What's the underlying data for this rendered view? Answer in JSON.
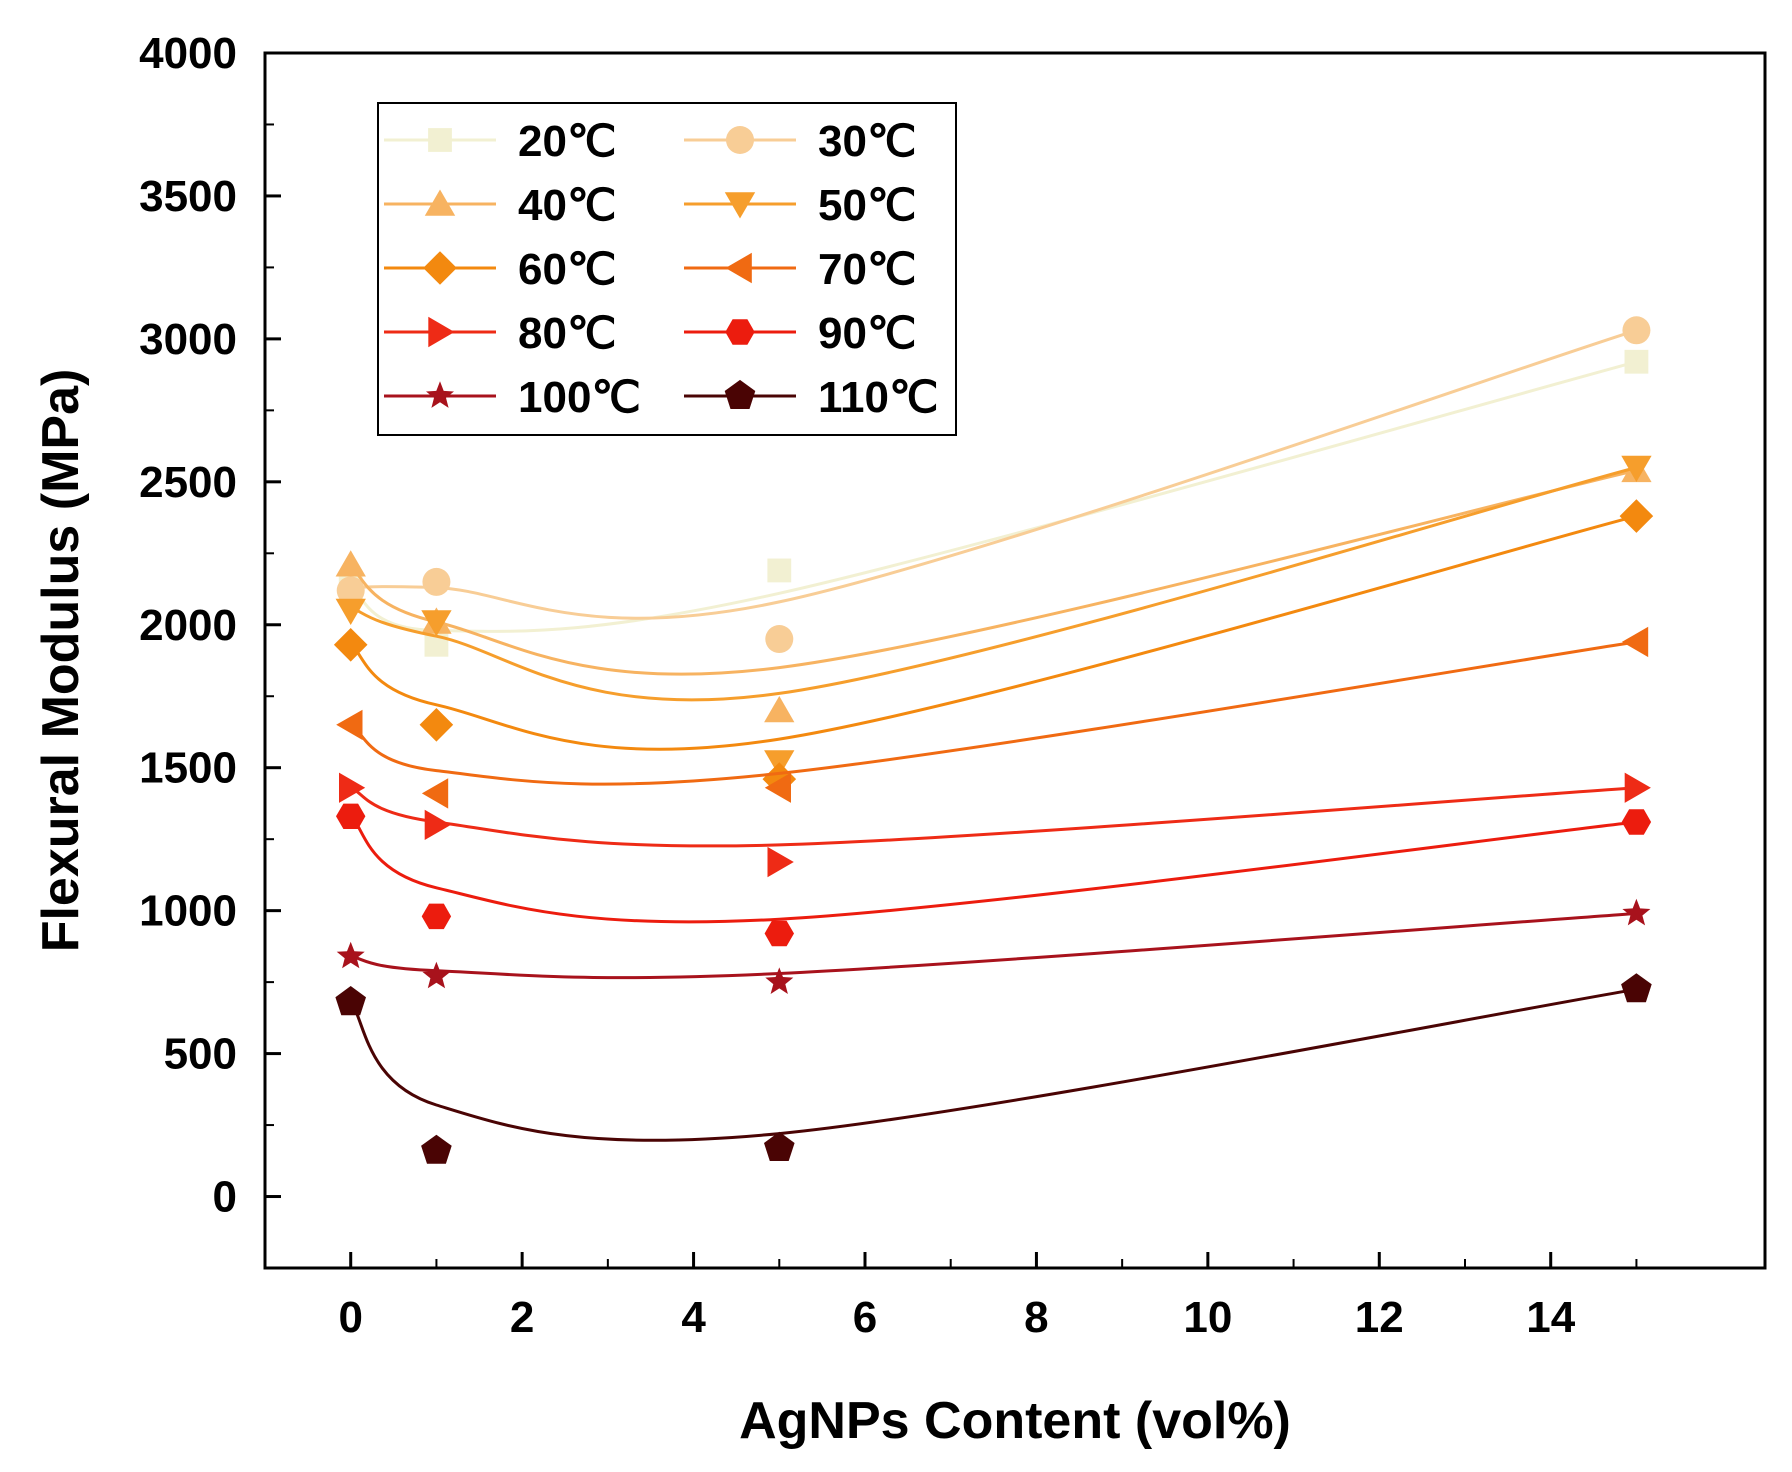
{
  "chart_data": {
    "type": "scatter",
    "xlabel": "AgNPs Content (vol%)",
    "ylabel": "Flexural Modulus (MPa)",
    "xlim": [
      -1,
      16.5
    ],
    "ylim": [
      -250,
      4000
    ],
    "xticks": [
      0,
      2,
      4,
      6,
      8,
      10,
      12,
      14
    ],
    "yticks": [
      0,
      500,
      1000,
      1500,
      2000,
      2500,
      3000,
      3500,
      4000
    ],
    "grid": false,
    "legend_position": "top-left",
    "x": [
      0,
      1,
      5,
      15
    ],
    "series": [
      {
        "name": "20℃",
        "marker": "square",
        "color": "#f2f0d2",
        "values": [
          2130,
          1930,
          2190,
          2920
        ],
        "fit": [
          2130,
          1980,
          2110,
          2920
        ]
      },
      {
        "name": "30℃",
        "marker": "circle",
        "color": "#f8cd96",
        "values": [
          2120,
          2150,
          1950,
          3030
        ],
        "fit": [
          2130,
          2130,
          2080,
          3030
        ]
      },
      {
        "name": "40℃",
        "marker": "triangle-up",
        "color": "#f7b361",
        "values": [
          2210,
          2010,
          1700,
          2540
        ],
        "fit": [
          2200,
          2010,
          1850,
          2540
        ]
      },
      {
        "name": "50℃",
        "marker": "triangle-down",
        "color": "#f69e2c",
        "values": [
          2050,
          2010,
          1520,
          2550
        ],
        "fit": [
          2060,
          1960,
          1760,
          2550
        ]
      },
      {
        "name": "60℃",
        "marker": "diamond",
        "color": "#f3890f",
        "values": [
          1930,
          1650,
          1460,
          2380
        ],
        "fit": [
          1930,
          1720,
          1600,
          2380
        ]
      },
      {
        "name": "70℃",
        "marker": "triangle-left",
        "color": "#f06a12",
        "values": [
          1650,
          1410,
          1430,
          1940
        ],
        "fit": [
          1650,
          1490,
          1480,
          1940
        ]
      },
      {
        "name": "80℃",
        "marker": "triangle-right",
        "color": "#ee2b16",
        "values": [
          1430,
          1300,
          1170,
          1430
        ],
        "fit": [
          1430,
          1310,
          1230,
          1430
        ]
      },
      {
        "name": "90℃",
        "marker": "hexagon",
        "color": "#ec1c0e",
        "values": [
          1330,
          980,
          920,
          1310
        ],
        "fit": [
          1330,
          1080,
          970,
          1310
        ]
      },
      {
        "name": "100℃",
        "marker": "star",
        "color": "#a8121c",
        "values": [
          840,
          770,
          750,
          990
        ],
        "fit": [
          840,
          790,
          780,
          990
        ]
      },
      {
        "name": "110℃",
        "marker": "pentagon",
        "color": "#4a0404",
        "values": [
          680,
          160,
          170,
          725
        ],
        "fit": [
          680,
          320,
          220,
          725
        ]
      }
    ]
  }
}
